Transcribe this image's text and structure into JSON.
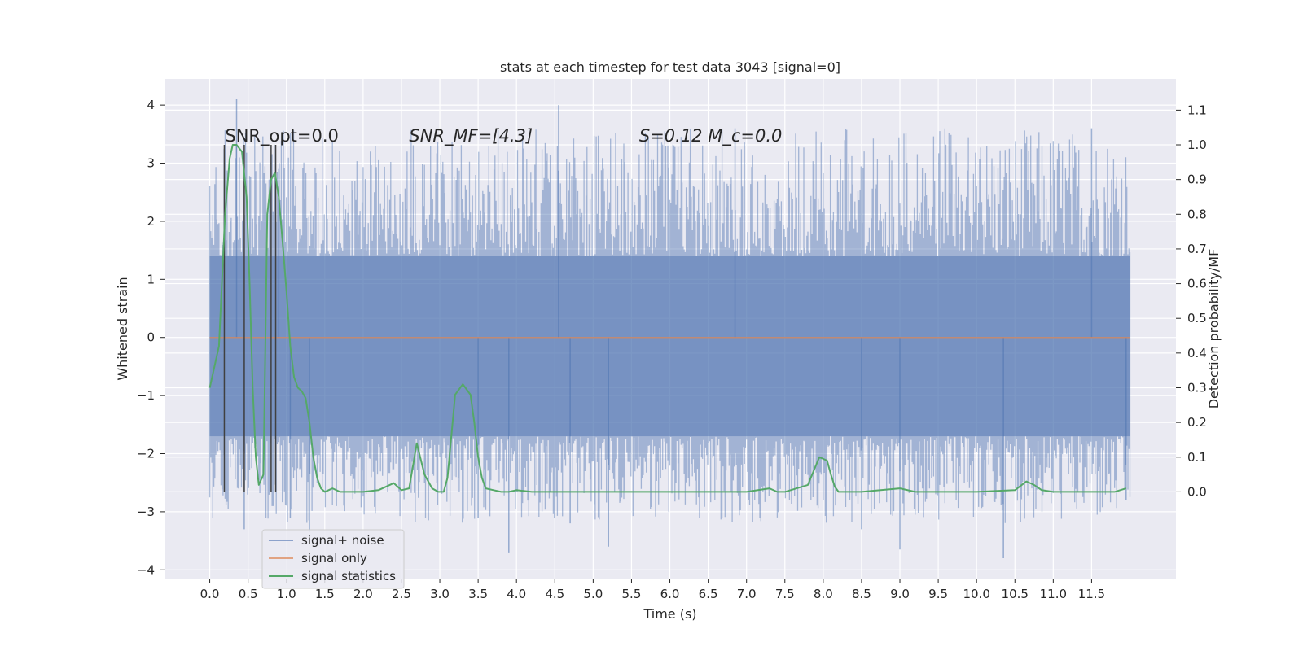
{
  "chart_data": {
    "type": "line",
    "title": "stats at each timestep for test data 3043 [signal=0]",
    "xlabel": "Time (s)",
    "ylabel_left": "Whitened strain",
    "ylabel_right": "Detection probability/MF",
    "xlim": [
      -0.59,
      12.6
    ],
    "ylim_left": [
      -4.15,
      4.45
    ],
    "ylim_right": [
      -0.25,
      1.19
    ],
    "x_ticks": [
      0.0,
      0.5,
      1.0,
      1.5,
      2.0,
      2.5,
      3.0,
      3.5,
      4.0,
      4.5,
      5.0,
      5.5,
      6.0,
      6.5,
      7.0,
      7.5,
      8.0,
      8.5,
      9.0,
      9.5,
      10.0,
      10.5,
      11.0,
      11.5
    ],
    "x_tick_labels": [
      "0.0",
      "0.5",
      "1.0",
      "1.5",
      "2.0",
      "2.5",
      "3.0",
      "3.5",
      "4.0",
      "4.5",
      "5.0",
      "5.5",
      "6.0",
      "6.5",
      "7.0",
      "7.5",
      "8.0",
      "8.5",
      "9.0",
      "9.5",
      "10.0",
      "10.5",
      "11.0",
      "11.5"
    ],
    "y_ticks_left": [
      4,
      3,
      2,
      1,
      0,
      -1,
      -2,
      -3,
      -4
    ],
    "y_tick_labels_left": [
      "4",
      "3",
      "2",
      "1",
      "0",
      "−1",
      "−2",
      "−3",
      "−4"
    ],
    "y_ticks_right": [
      1.1,
      1.0,
      0.9,
      0.8,
      0.7,
      0.6,
      0.5,
      0.4,
      0.3,
      0.2,
      0.1,
      0.0
    ],
    "y_tick_labels_right": [
      "1.1",
      "1.0",
      "0.9",
      "0.8",
      "0.7",
      "0.6",
      "0.5",
      "0.4",
      "0.3",
      "0.2",
      "0.1",
      "0.0"
    ],
    "grid": true,
    "legend_position": "lower-left",
    "series": [
      {
        "name": "signal+ noise",
        "axis": "left",
        "color": "#4c72b0",
        "x_range": [
          0.0,
          12.0
        ],
        "band_typical": [
          -1.7,
          1.4
        ],
        "peak_points": [
          [
            0.35,
            4.1
          ],
          [
            0.45,
            -3.3
          ],
          [
            0.9,
            2.9
          ],
          [
            1.05,
            -3.1
          ],
          [
            1.3,
            -3.35
          ],
          [
            3.5,
            -3.1
          ],
          [
            3.9,
            -3.7
          ],
          [
            4.55,
            4.0
          ],
          [
            4.7,
            -3.2
          ],
          [
            5.2,
            -3.6
          ],
          [
            6.85,
            3.6
          ],
          [
            8.5,
            -3.3
          ],
          [
            9.0,
            -3.65
          ],
          [
            10.35,
            -3.8
          ],
          [
            11.5,
            3.6
          ],
          [
            11.95,
            -2.8
          ]
        ]
      },
      {
        "name": "signal only",
        "axis": "left",
        "color": "#dd8452",
        "x": [
          0.0,
          12.0
        ],
        "y": [
          0.0,
          0.0
        ]
      },
      {
        "name": "signal statistics",
        "axis": "right",
        "color": "#55a868",
        "x": [
          0.0,
          0.12,
          0.2,
          0.26,
          0.3,
          0.35,
          0.42,
          0.48,
          0.52,
          0.56,
          0.6,
          0.64,
          0.7,
          0.75,
          0.8,
          0.85,
          0.9,
          0.95,
          1.0,
          1.05,
          1.1,
          1.15,
          1.2,
          1.25,
          1.3,
          1.35,
          1.4,
          1.45,
          1.5,
          1.55,
          1.6,
          1.7,
          1.8,
          1.9,
          2.0,
          2.2,
          2.4,
          2.5,
          2.6,
          2.7,
          2.8,
          2.9,
          2.98,
          3.05,
          3.1,
          3.2,
          3.3,
          3.4,
          3.45,
          3.5,
          3.55,
          3.6,
          3.7,
          3.8,
          3.9,
          4.0,
          4.2,
          4.3,
          4.5,
          5.0,
          6.0,
          7.0,
          7.3,
          7.4,
          7.5,
          7.8,
          7.95,
          8.05,
          8.1,
          8.15,
          8.2,
          8.3,
          8.5,
          9.0,
          9.2,
          9.4,
          10.0,
          10.5,
          10.65,
          10.75,
          10.85,
          11.0,
          11.5,
          11.8,
          11.95
        ],
        "y": [
          0.3,
          0.42,
          0.8,
          0.96,
          1.0,
          1.0,
          0.98,
          0.85,
          0.6,
          0.3,
          0.1,
          0.02,
          0.05,
          0.8,
          0.9,
          0.92,
          0.85,
          0.72,
          0.58,
          0.42,
          0.33,
          0.3,
          0.29,
          0.27,
          0.2,
          0.1,
          0.04,
          0.01,
          0.0,
          0.005,
          0.01,
          0.0,
          0.0,
          0.0,
          0.0,
          0.005,
          0.025,
          0.005,
          0.01,
          0.14,
          0.05,
          0.01,
          0.0,
          0.0,
          0.04,
          0.28,
          0.31,
          0.28,
          0.2,
          0.1,
          0.04,
          0.01,
          0.005,
          0.0,
          0.0,
          0.005,
          0.0,
          0.0,
          0.0,
          0.0,
          0.0,
          0.0,
          0.01,
          0.0,
          0.0,
          0.02,
          0.1,
          0.09,
          0.05,
          0.015,
          0.0,
          0.0,
          0.0,
          0.01,
          0.0,
          0.0,
          0.0,
          0.005,
          0.03,
          0.02,
          0.005,
          0.0,
          0.0,
          0.0,
          0.01
        ]
      }
    ],
    "vertical_markers": {
      "color": "#404040",
      "x": [
        0.19,
        0.45,
        0.8,
        0.86
      ],
      "y_from": 0.0,
      "y_to": 1.0
    },
    "annotations": [
      {
        "name": "snr-opt",
        "x": 0.2,
        "y_right": 1.01,
        "text": "SNR_opt=0.0",
        "italic": false
      },
      {
        "name": "snr-mf",
        "x": 2.6,
        "y_right": 1.01,
        "text": "SNR_MF=[4.3]",
        "italic": true
      },
      {
        "name": "s-mc",
        "x": 5.6,
        "y_right": 1.01,
        "text": "S=0.12   M_c=0.0",
        "italic": true
      }
    ]
  }
}
